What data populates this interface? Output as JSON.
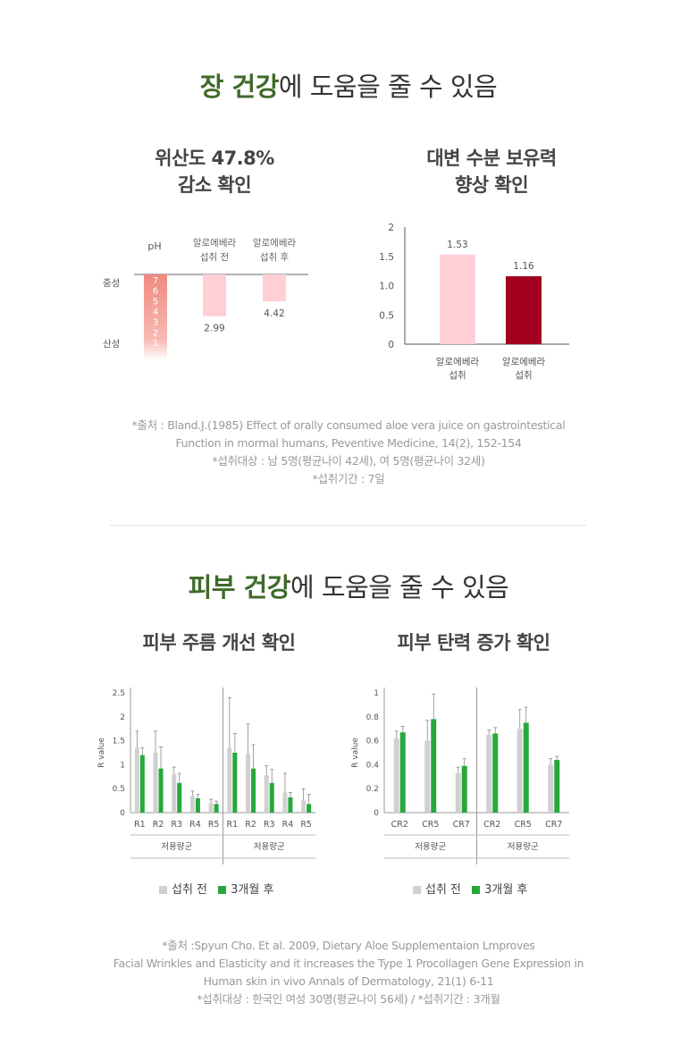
{
  "section1": {
    "title_highlight": "장 건강",
    "title_rest": "에 도움을 줄 수 있음"
  },
  "section2": {
    "title_highlight": "피부 건강",
    "title_rest": "에 도움을 줄 수 있음"
  },
  "colors": {
    "ph_gradient_top": "#f08a80",
    "pale_pink": "#ffcfd6",
    "dark_red": "#a0001e",
    "gray": "#d0d0d0",
    "green": "#27a83c",
    "title_green": "#3f6b2a"
  },
  "ph_chart": {
    "title_line1": "위산도 47.8%",
    "title_line2": "감소 확인",
    "col_ph": "pH",
    "col_before": [
      "알로에베라",
      "섭취 전"
    ],
    "col_after": [
      "알로에베라",
      "섭취 후"
    ],
    "neutral_label": "중성",
    "acid_label": "산성",
    "ph_scale": [
      "7",
      "6",
      "5",
      "4",
      "3",
      "2",
      "1"
    ]
  },
  "stool_chart": {
    "title_line1": "대변 수분 보유력",
    "title_line2": "향상 확인"
  },
  "wrinkle_chart": {
    "title": "피부 주름 개선 확인"
  },
  "elastic_chart": {
    "title": "피부 탄력 증가 확인"
  },
  "legend": {
    "before": "섭취 전",
    "after": "3개월 후"
  },
  "source1": [
    "*출처 : Bland.J.(1985) Effect of orally consumed aloe vera juice on gastrointestical",
    "Function in mormal humans, Peventive Medicine, 14(2), 152-154",
    "*섭취대상 : 남 5명(평균나이 42세), 여 5명(평균나이 32세)",
    "*섭취기간 : 7일"
  ],
  "source2": [
    "*출처 :Spyun Cho. Et al. 2009, Dietary Aloe Supplementaion Lmproves",
    "Facial Wrinkles and Elasticity and it increases the Type 1 Procollagen Gene Expression in",
    "Human skin in vivo Annals of Dermatology, 21(1) 6-11",
    "*섭취대상 : 한국인 여성 30명(평균나이 56세) / *섭취기간 : 3개월"
  ],
  "chart_data": [
    {
      "type": "bar",
      "title": "위산도 47.8% 감소 확인",
      "categories": [
        "알로에베라 섭취 전",
        "알로에베라 섭취 후"
      ],
      "values": [
        2.99,
        4.42
      ],
      "data_labels": [
        "2.99",
        "4.42"
      ],
      "ylabel": "pH",
      "ylim": [
        1,
        7
      ]
    },
    {
      "type": "bar",
      "title": "대변 수분 보유력 향상 확인",
      "categories": [
        "알로에베라 섭취 전",
        "알로에베라 섭취 후"
      ],
      "values": [
        1.53,
        1.16
      ],
      "data_labels": [
        "1.53",
        "1.16"
      ],
      "ylim": [
        0,
        2
      ],
      "yticks": [
        "0",
        "0.5",
        "1.0",
        "1.5",
        "2"
      ]
    },
    {
      "type": "bar",
      "title": "피부 주름 개선 확인",
      "ylabel": "R value",
      "ylim": [
        0,
        2.5
      ],
      "yticks": [
        "0",
        "0.5",
        "1",
        "1.5",
        "2",
        "2.5"
      ],
      "group_label": "저용량군",
      "groups": [
        {
          "label": "저용량군",
          "categories": [
            "R1",
            "R2",
            "R3",
            "R4",
            "R5"
          ],
          "series": [
            {
              "name": "섭취 전",
              "values": [
                1.35,
                1.25,
                0.8,
                0.35,
                0.2
              ],
              "errors": [
                0.35,
                0.45,
                0.15,
                0.1,
                0.08
              ]
            },
            {
              "name": "3개월 후",
              "values": [
                1.2,
                0.92,
                0.62,
                0.3,
                0.18
              ],
              "errors": [
                0.15,
                0.45,
                0.2,
                0.08,
                0.06
              ]
            }
          ]
        },
        {
          "label": "저용량군",
          "categories": [
            "R1",
            "R2",
            "R3",
            "R4",
            "R5"
          ],
          "series": [
            {
              "name": "섭취 전",
              "values": [
                1.35,
                1.22,
                0.78,
                0.42,
                0.25
              ],
              "errors": [
                1.05,
                0.63,
                0.2,
                0.4,
                0.25
              ]
            },
            {
              "name": "3개월 후",
              "values": [
                1.25,
                0.92,
                0.62,
                0.32,
                0.18
              ],
              "errors": [
                0.4,
                0.5,
                0.28,
                0.1,
                0.2
              ]
            }
          ]
        }
      ]
    },
    {
      "type": "bar",
      "title": "피부 탄력 증가 확인",
      "ylabel": "R value",
      "ylim": [
        0,
        1
      ],
      "yticks": [
        "0",
        "0.2",
        "0.4",
        "0.6",
        "0.8",
        "1"
      ],
      "group_label": "저용량군",
      "groups": [
        {
          "label": "저용량군",
          "categories": [
            "CR2",
            "CR5",
            "CR7"
          ],
          "series": [
            {
              "name": "섭취 전",
              "values": [
                0.62,
                0.6,
                0.33
              ],
              "errors": [
                0.06,
                0.17,
                0.05
              ]
            },
            {
              "name": "3개월 후",
              "values": [
                0.67,
                0.78,
                0.39
              ],
              "errors": [
                0.05,
                0.21,
                0.06
              ]
            }
          ]
        },
        {
          "label": "저용량군",
          "categories": [
            "CR2",
            "CR5",
            "CR7"
          ],
          "series": [
            {
              "name": "섭취 전",
              "values": [
                0.65,
                0.7,
                0.4
              ],
              "errors": [
                0.04,
                0.16,
                0.05
              ]
            },
            {
              "name": "3개월 후",
              "values": [
                0.66,
                0.75,
                0.44
              ],
              "errors": [
                0.05,
                0.13,
                0.03
              ]
            }
          ]
        }
      ]
    }
  ]
}
